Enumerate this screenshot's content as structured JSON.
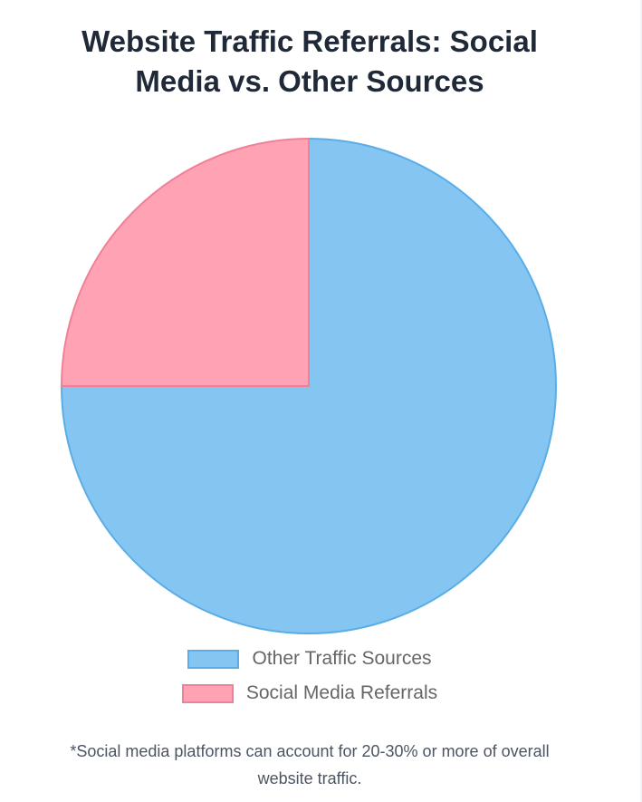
{
  "chart_data": {
    "type": "pie",
    "title_lines": [
      "Website Traffic Referrals: Social",
      "Media vs. Other Sources"
    ],
    "categories": [
      "Other Traffic Sources",
      "Social Media Referrals"
    ],
    "values": [
      75,
      25
    ],
    "colors": {
      "fill": [
        "#85c5f2",
        "#ffa2b4"
      ],
      "border": [
        "#5aade6",
        "#f27f98"
      ]
    },
    "legend_position": "bottom"
  },
  "footnote_lines": [
    "*Social media platforms can account for 20-30% or more of overall",
    "website traffic."
  ]
}
